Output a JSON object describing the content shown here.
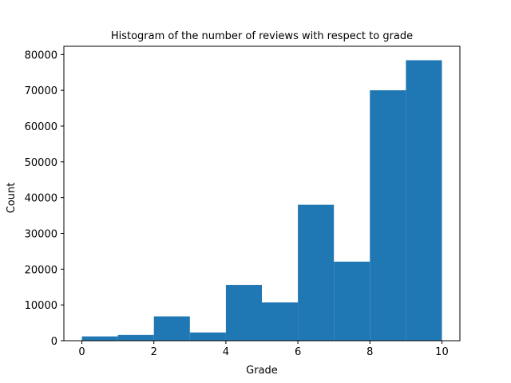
{
  "chart_data": {
    "type": "bar",
    "title": "Histogram of the number of reviews with respect to grade",
    "xlabel": "Grade",
    "ylabel": "Count",
    "bins": [
      {
        "start": 0,
        "end": 1,
        "count": 1200
      },
      {
        "start": 1,
        "end": 2,
        "count": 1600
      },
      {
        "start": 2,
        "end": 3,
        "count": 6800
      },
      {
        "start": 3,
        "end": 4,
        "count": 2300
      },
      {
        "start": 4,
        "end": 5,
        "count": 15600
      },
      {
        "start": 5,
        "end": 6,
        "count": 10700
      },
      {
        "start": 6,
        "end": 7,
        "count": 38000
      },
      {
        "start": 7,
        "end": 8,
        "count": 22100
      },
      {
        "start": 8,
        "end": 9,
        "count": 70000
      },
      {
        "start": 9,
        "end": 10,
        "count": 78400
      }
    ],
    "xlim": [
      -0.5,
      10.5
    ],
    "ylim": [
      0,
      82300
    ],
    "xticks": [
      0,
      2,
      4,
      6,
      8,
      10
    ],
    "yticks": [
      0,
      10000,
      20000,
      30000,
      40000,
      50000,
      60000,
      70000,
      80000
    ],
    "grid": false,
    "bar_color": "#1f77b4"
  }
}
